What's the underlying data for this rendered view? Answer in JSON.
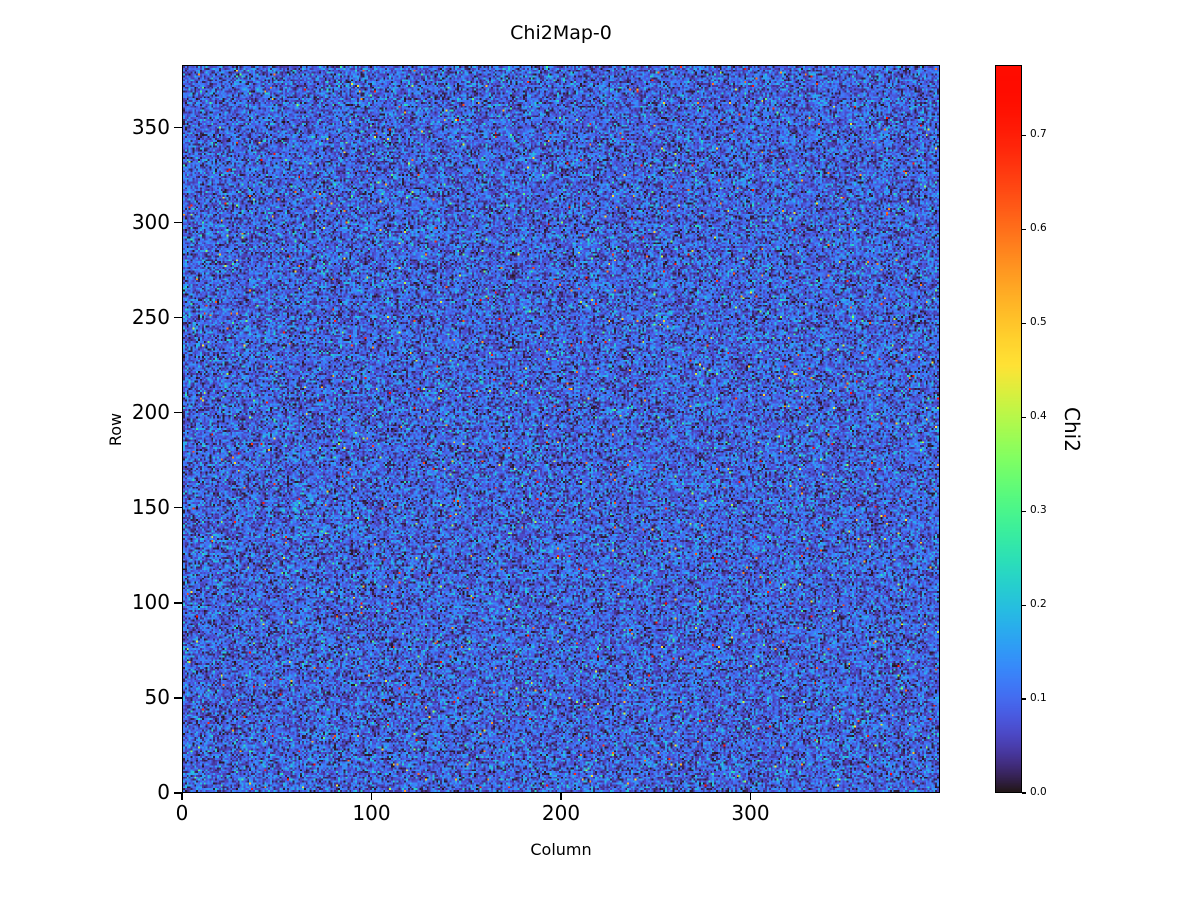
{
  "chart_data": {
    "type": "heatmap",
    "title": "Chi2Map-0",
    "xlabel": "Column",
    "ylabel": "Row",
    "xlim": [
      0,
      400
    ],
    "ylim": [
      0,
      383
    ],
    "x_ticks": [
      0,
      100,
      200,
      300
    ],
    "y_ticks": [
      0,
      50,
      100,
      150,
      200,
      250,
      300,
      350
    ],
    "grid": {
      "nx": 400,
      "ny": 383
    },
    "colormap": "turbo",
    "legend_position": "right-colorbar",
    "grid_lines": false,
    "colorbar": {
      "label": "Chi2",
      "vmin": 0.0,
      "vmax": 0.775,
      "ticks": [
        0.0,
        0.1,
        0.2,
        0.3,
        0.4,
        0.5,
        0.6,
        0.7
      ],
      "tick_decimals": 1
    },
    "value_distribution": {
      "description": "dense per-pixel random chi2 noise; bulk of pixels ~0.02-0.18 (blue) with dark near-zero speckle and sparse bright outliers up to ~0.775",
      "mean": 0.085,
      "std": 0.055,
      "outlier_fraction": 0.008,
      "outlier_range": [
        0.2,
        0.775
      ],
      "seed": 42
    }
  }
}
